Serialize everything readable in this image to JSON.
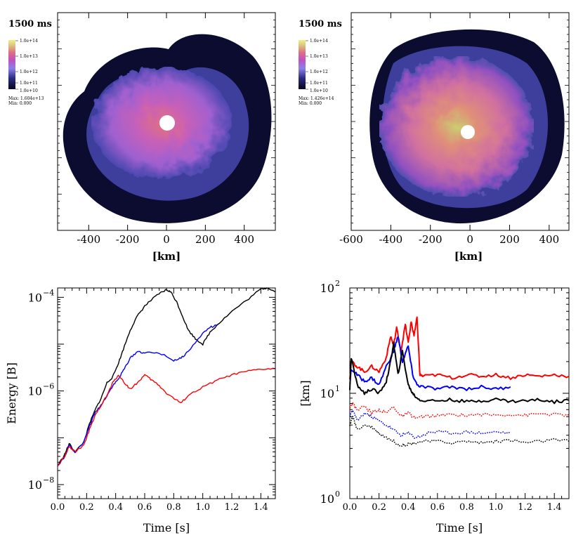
{
  "chart_data": [
    {
      "type": "heatmap",
      "panel": "top-left",
      "time_label": "1500 ms",
      "colorbar": {
        "ticks": [
          "1.0e+14",
          "1.0e+13",
          "1.0e+12",
          "1.0e+11",
          "1.0e+10"
        ],
        "max_label": "Max: 1.604e+13",
        "min_label": "Min:  0.000"
      },
      "xlabel": "[km]",
      "xlim": [
        -560,
        560
      ],
      "xticks": [
        -400,
        -200,
        0,
        200,
        400
      ],
      "xtick_labels": [
        "-400",
        "-200",
        "0",
        "200",
        "400"
      ]
    },
    {
      "type": "heatmap",
      "panel": "top-right",
      "time_label": "1500 ms",
      "colorbar": {
        "ticks": [
          "1.0e+14",
          "1.0e+13",
          "1.0e+12",
          "1.0e+11",
          "1.0e+10"
        ],
        "max_label": "Max: 1.426e+14",
        "min_label": "Min:  0.000"
      },
      "xlabel": "[km]",
      "xlim": [
        -600,
        500
      ],
      "xticks": [
        -600,
        -400,
        -200,
        0,
        200,
        400
      ],
      "xtick_labels": [
        "-600",
        "-400",
        "-200",
        "0",
        "200",
        "400"
      ]
    },
    {
      "type": "line",
      "panel": "bottom-left",
      "xlabel": "Time [s]",
      "ylabel": "Energy [B]",
      "xlim": [
        0,
        1.5
      ],
      "ylim_log10": [
        -8.3,
        -3.8
      ],
      "xtick_labels": [
        "0.0",
        "0.2",
        "0.4",
        "0.6",
        "0.8",
        "1.0",
        "1.2",
        "1.4"
      ],
      "yticks_log10": [
        -8,
        -6,
        -4
      ],
      "ytick_labels": [
        "10",
        "10",
        "10"
      ],
      "ytick_exponents": [
        "−8",
        "−6",
        "−4"
      ],
      "series": [
        {
          "name": "black",
          "color": "#000000",
          "x": [
            0.0,
            0.05,
            0.08,
            0.12,
            0.18,
            0.22,
            0.26,
            0.3,
            0.34,
            0.38,
            0.42,
            0.46,
            0.5,
            0.55,
            0.6,
            0.65,
            0.7,
            0.75,
            0.78,
            0.82,
            0.86,
            0.9,
            0.95,
            1.0,
            1.05,
            1.1,
            1.2,
            1.3,
            1.4,
            1.45,
            1.5
          ],
          "y": [
            2.5e-08,
            4.5e-08,
            7.5e-08,
            5e-08,
            8e-08,
            2e-07,
            4e-07,
            7e-07,
            1.5e-06,
            2e-06,
            4e-06,
            9e-06,
            2e-05,
            4e-05,
            6.5e-05,
            9e-05,
            0.00012,
            0.000145,
            0.00013,
            8e-05,
            4e-05,
            2e-05,
            1.3e-05,
            1e-05,
            1.8e-05,
            2.6e-05,
            5e-05,
            8.5e-05,
            0.00015,
            0.00016,
            0.00013
          ]
        },
        {
          "name": "blue",
          "color": "#0000ff",
          "x": [
            0.0,
            0.05,
            0.08,
            0.12,
            0.18,
            0.22,
            0.26,
            0.3,
            0.34,
            0.38,
            0.42,
            0.46,
            0.5,
            0.55,
            0.6,
            0.7,
            0.8,
            0.85,
            0.9,
            1.0,
            1.05,
            1.1
          ],
          "y": [
            2.5e-08,
            4e-08,
            7e-08,
            5e-08,
            8e-08,
            1.8e-07,
            3.5e-07,
            5e-07,
            8e-07,
            1.3e-06,
            1.8e-06,
            3e-06,
            5e-06,
            7e-06,
            6.5e-06,
            6.5e-06,
            4.5e-06,
            5e-06,
            7e-06,
            1.7e-05,
            2.3e-05,
            2.5e-05
          ]
        },
        {
          "name": "red",
          "color": "#ff0000",
          "x": [
            0.0,
            0.05,
            0.08,
            0.12,
            0.18,
            0.22,
            0.26,
            0.3,
            0.34,
            0.38,
            0.42,
            0.46,
            0.5,
            0.55,
            0.6,
            0.65,
            0.7,
            0.75,
            0.8,
            0.85,
            0.9,
            1.0,
            1.1,
            1.2,
            1.3,
            1.4,
            1.5
          ],
          "y": [
            2.5e-08,
            4e-08,
            6.5e-08,
            5e-08,
            7e-08,
            1.5e-07,
            3e-07,
            5e-07,
            8e-07,
            1.5e-06,
            2.2e-06,
            1.5e-06,
            1.1e-06,
            1.5e-06,
            2.2e-06,
            1.7e-06,
            1.3e-06,
            9e-07,
            7e-07,
            5.5e-07,
            8e-07,
            1.2e-06,
            1.7e-06,
            2.2e-06,
            2.6e-06,
            2.9e-06,
            3e-06
          ]
        }
      ]
    },
    {
      "type": "line",
      "panel": "bottom-right",
      "xlabel": "Time [s]",
      "ylabel": "[km]",
      "xlim": [
        0,
        1.5
      ],
      "ylim_log10": [
        0,
        2
      ],
      "xtick_labels": [
        "0.0",
        "0.2",
        "0.4",
        "0.6",
        "0.8",
        "1.0",
        "1.2",
        "1.4"
      ],
      "yticks_log10": [
        0,
        1,
        2
      ],
      "ytick_labels": [
        "10",
        "10",
        "10"
      ],
      "ytick_exponents": [
        "0",
        "1",
        "2"
      ],
      "series": [
        {
          "name": "red-solid",
          "color": "#ff0000",
          "dash": "solid",
          "width": 2,
          "x": [
            0.0,
            0.01,
            0.05,
            0.1,
            0.15,
            0.2,
            0.25,
            0.28,
            0.3,
            0.32,
            0.35,
            0.38,
            0.4,
            0.42,
            0.44,
            0.46,
            0.48,
            0.5,
            0.6,
            0.7,
            0.8,
            0.9,
            1.0,
            1.1,
            1.2,
            1.3,
            1.4,
            1.5
          ],
          "y": [
            14,
            20,
            18,
            16,
            18,
            16,
            22,
            35,
            28,
            42,
            25,
            45,
            30,
            48,
            35,
            52,
            15,
            14.5,
            15,
            14,
            15,
            14.5,
            15,
            14,
            15,
            14.5,
            15,
            14.5
          ]
        },
        {
          "name": "blue-solid",
          "color": "#0000ff",
          "dash": "solid",
          "width": 2,
          "x": [
            0.0,
            0.01,
            0.05,
            0.1,
            0.15,
            0.2,
            0.25,
            0.3,
            0.33,
            0.36,
            0.4,
            0.43,
            0.46,
            0.5,
            0.6,
            0.7,
            0.8,
            0.9,
            1.0,
            1.1
          ],
          "y": [
            12,
            17,
            15,
            13,
            14,
            12,
            18,
            25,
            35,
            20,
            28,
            15,
            12,
            11.5,
            11,
            11.5,
            11,
            11.5,
            11,
            11.5
          ]
        },
        {
          "name": "black-solid",
          "color": "#000000",
          "dash": "solid",
          "width": 2,
          "x": [
            0.0,
            0.01,
            0.05,
            0.1,
            0.15,
            0.2,
            0.25,
            0.28,
            0.3,
            0.33,
            0.36,
            0.4,
            0.43,
            0.46,
            0.5,
            0.6,
            0.7,
            0.8,
            0.9,
            1.0,
            1.1,
            1.2,
            1.3,
            1.4,
            1.5
          ],
          "y": [
            11,
            22,
            12,
            10,
            11,
            10,
            13,
            20,
            30,
            15,
            25,
            12,
            10,
            9,
            8.5,
            8.5,
            8.7,
            8.3,
            8.5,
            8.8,
            8.4,
            8.5,
            8.7,
            8.3,
            8.6
          ]
        },
        {
          "name": "red-dotted",
          "color": "#ff0000",
          "dash": "dotted",
          "width": 1.6,
          "x": [
            0.0,
            0.02,
            0.05,
            0.1,
            0.15,
            0.2,
            0.25,
            0.3,
            0.35,
            0.4,
            0.45,
            0.5,
            0.6,
            0.7,
            0.8,
            0.9,
            1.0,
            1.1,
            1.2,
            1.3,
            1.4,
            1.5
          ],
          "y": [
            7.5,
            8,
            7,
            7.5,
            6.5,
            7,
            6.5,
            7.5,
            6,
            6.5,
            5.8,
            6,
            6.1,
            6.3,
            6.2,
            6.3,
            6.2,
            6.3,
            6.2,
            6.4,
            6.3,
            6.2
          ]
        },
        {
          "name": "blue-dotted",
          "color": "#0000ff",
          "dash": "dotted",
          "width": 1.6,
          "x": [
            0.0,
            0.02,
            0.05,
            0.1,
            0.15,
            0.2,
            0.25,
            0.3,
            0.35,
            0.4,
            0.45,
            0.5,
            0.55,
            0.6,
            0.7,
            0.8,
            0.9,
            1.0,
            1.1
          ],
          "y": [
            6,
            7,
            5.5,
            6.5,
            6,
            5.5,
            5,
            4.5,
            4,
            4.2,
            3.8,
            4,
            4.3,
            4.3,
            4.2,
            4.3,
            4.2,
            4.3,
            4.2
          ]
        },
        {
          "name": "black-dotted",
          "color": "#000000",
          "dash": "dotted",
          "width": 1.6,
          "x": [
            0.0,
            0.02,
            0.05,
            0.1,
            0.15,
            0.2,
            0.25,
            0.3,
            0.35,
            0.4,
            0.45,
            0.5,
            0.6,
            0.7,
            0.8,
            0.9,
            1.0,
            1.1,
            1.2,
            1.3,
            1.4,
            1.5
          ],
          "y": [
            5,
            6,
            4.5,
            5,
            4.8,
            4.2,
            3.8,
            3.5,
            3.2,
            3.3,
            3.4,
            3.5,
            3.5,
            3.4,
            3.5,
            3.4,
            3.5,
            3.6,
            3.4,
            3.5,
            3.6,
            3.5
          ]
        }
      ]
    }
  ]
}
